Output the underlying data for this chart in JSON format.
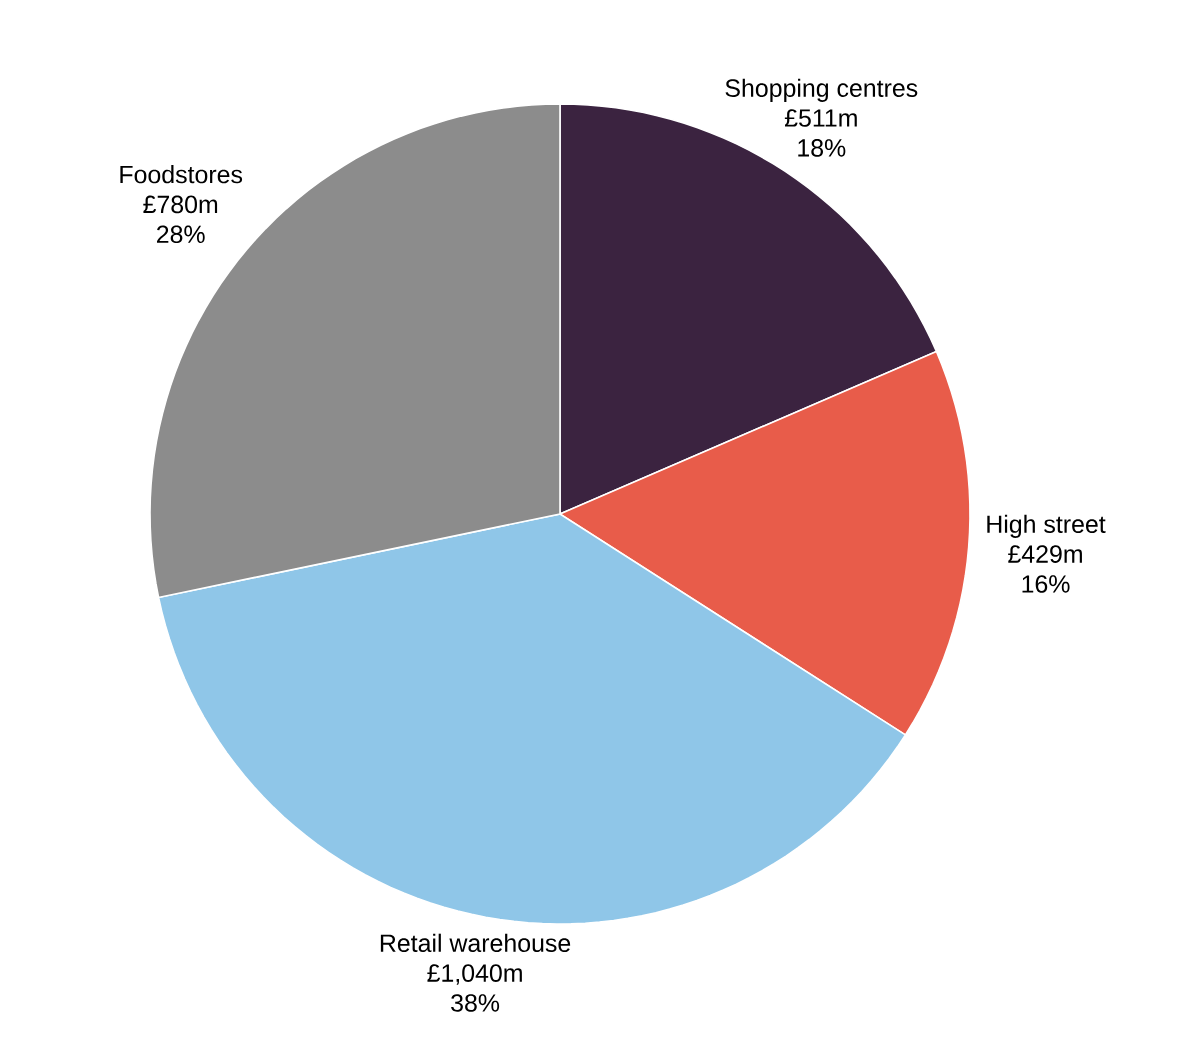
{
  "chart_data": {
    "type": "pie",
    "categories": [
      "Shopping centres",
      "High street",
      "Retail warehouse",
      "Foodstores"
    ],
    "values": [
      511,
      429,
      1040,
      780
    ],
    "colors": [
      "#3b2340",
      "#e85c4a",
      "#8fc6e8",
      "#8c8c8c"
    ],
    "value_labels": [
      "£511m",
      "£429m",
      "£1,040m",
      "£780m"
    ],
    "annotations": [
      "18%",
      "16%",
      "38%",
      "28%"
    ]
  }
}
